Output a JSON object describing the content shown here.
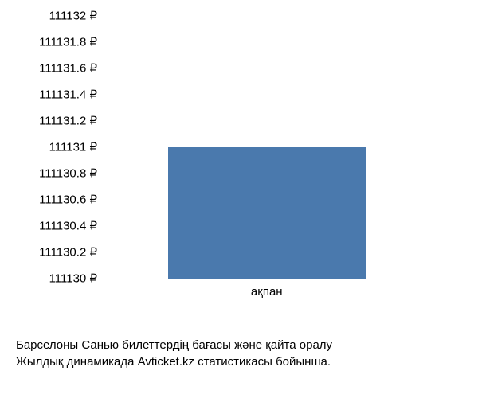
{
  "chart": {
    "type": "bar",
    "currency_symbol": "₽",
    "y_axis": {
      "min": 111130,
      "max": 111132,
      "tick_step": 0.2,
      "ticks": [
        {
          "value": 111132,
          "label": "111132 ₽"
        },
        {
          "value": 111131.8,
          "label": "111131.8 ₽"
        },
        {
          "value": 111131.6,
          "label": "111131.6 ₽"
        },
        {
          "value": 111131.4,
          "label": "111131.4 ₽"
        },
        {
          "value": 111131.2,
          "label": "111131.2 ₽"
        },
        {
          "value": 111131,
          "label": "111131 ₽"
        },
        {
          "value": 111130.8,
          "label": "111130.8 ₽"
        },
        {
          "value": 111130.6,
          "label": "111130.6 ₽"
        },
        {
          "value": 111130.4,
          "label": "111130.4 ₽"
        },
        {
          "value": 111130.2,
          "label": "111130.2 ₽"
        },
        {
          "value": 111130,
          "label": "111130 ₽"
        }
      ]
    },
    "x_axis": {
      "categories": [
        "ақпан"
      ]
    },
    "series": {
      "values": [
        111131
      ],
      "bar_color": "#4a79ad",
      "bar_width_fraction": 0.55,
      "bar_offset_fraction": 0.18
    },
    "background_color": "#ffffff",
    "text_color": "#000000",
    "label_fontsize": 15
  },
  "caption": {
    "line1": "Барселоны Санью билеттердің бағасы және қайта оралу",
    "line2": "Жылдық динамикада Avticket.kz статистикасы бойынша."
  }
}
